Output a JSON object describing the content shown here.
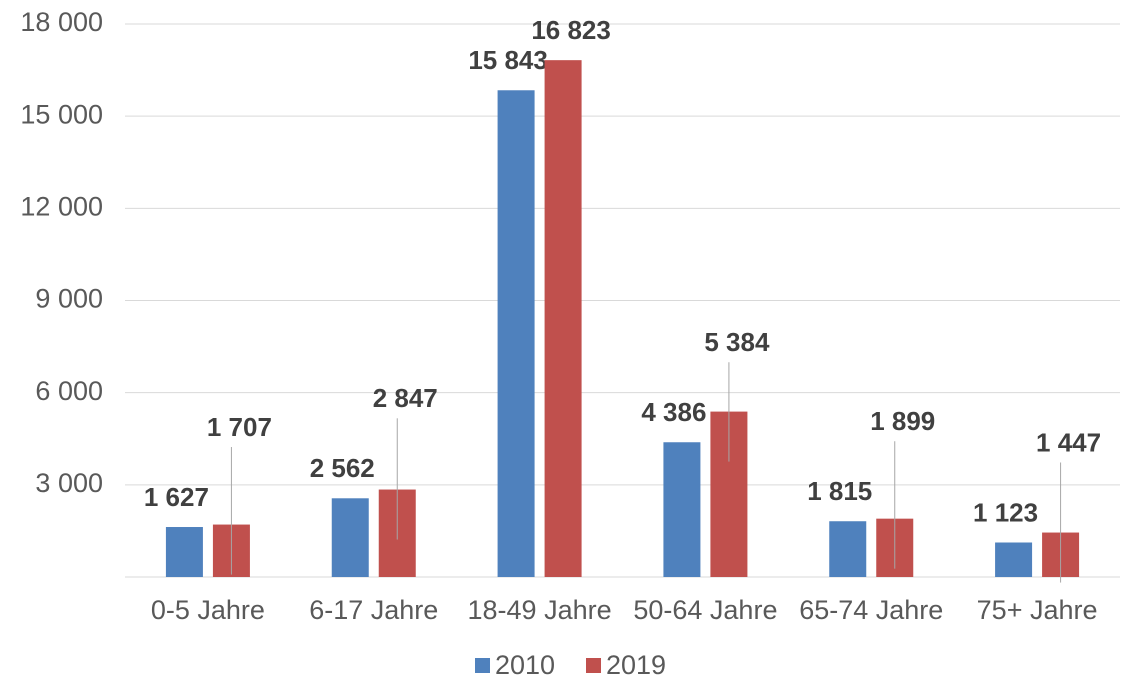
{
  "chart_data": {
    "type": "bar",
    "categories": [
      "0-5 Jahre",
      "6-17 Jahre",
      "18-49 Jahre",
      "50-64 Jahre",
      "65-74 Jahre",
      "75+ Jahre"
    ],
    "series": [
      {
        "name": "2010",
        "color": "#4f81bd",
        "values": [
          1627,
          2562,
          15843,
          4386,
          1815,
          1123
        ],
        "value_labels": [
          "1 627",
          "2 562",
          "15 843",
          "4 386",
          "1 815",
          "1 123"
        ]
      },
      {
        "name": "2019",
        "color": "#c0504d",
        "values": [
          1707,
          2847,
          16823,
          5384,
          1899,
          1447
        ],
        "value_labels": [
          "1 707",
          "2 847",
          "16 823",
          "5 384",
          "1 899",
          "1 447"
        ]
      }
    ],
    "ylim": [
      0,
      18000
    ],
    "yticks": [
      {
        "value": 3000,
        "label": "3 000"
      },
      {
        "value": 6000,
        "label": "6 000"
      },
      {
        "value": 9000,
        "label": "9 000"
      },
      {
        "value": 12000,
        "label": "12 000"
      },
      {
        "value": 15000,
        "label": "15 000"
      },
      {
        "value": 18000,
        "label": "18 000"
      }
    ],
    "grid": true,
    "legend": "bottom"
  }
}
